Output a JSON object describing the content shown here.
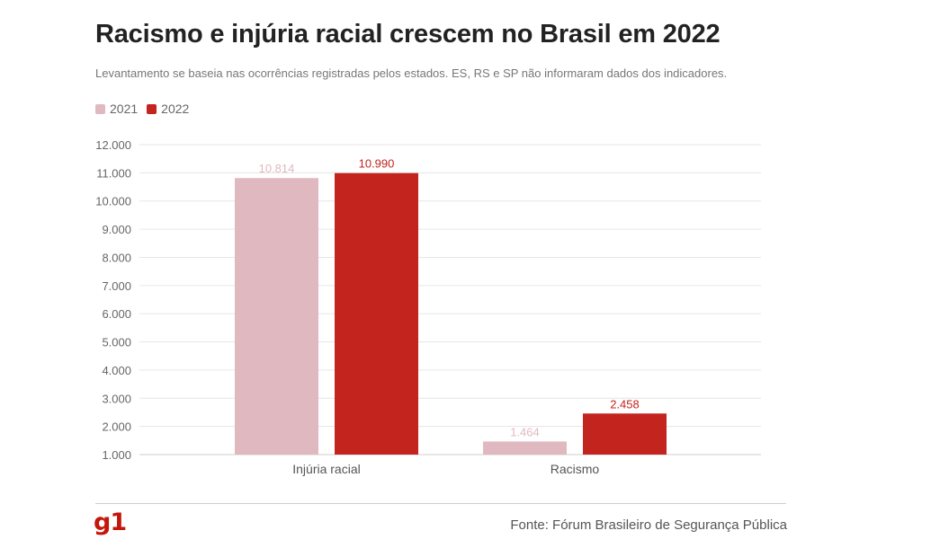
{
  "header": {
    "title": "Racismo e injúria racial crescem no Brasil em 2022",
    "subtitle": "Levantamento se baseia nas ocorrências registradas pelos estados. ES, RS e SP não informaram dados dos indicadores."
  },
  "footer": {
    "logo_text": "g1",
    "source": "Fonte: Fórum Brasileiro de Segurança Pública"
  },
  "colors": {
    "series_2021": "#e0b9c0",
    "series_2022": "#c4241e",
    "brand": "#c4170c"
  },
  "chart_data": {
    "type": "bar",
    "categories": [
      "Injúria racial",
      "Racismo"
    ],
    "series": [
      {
        "name": "2021",
        "values": [
          10814,
          1464
        ],
        "labels": [
          "10.814",
          "1.464"
        ]
      },
      {
        "name": "2022",
        "values": [
          10990,
          2458
        ],
        "labels": [
          "10.990",
          "2.458"
        ]
      }
    ],
    "ylim": [
      1000,
      12000
    ],
    "yticks": [
      1000,
      2000,
      3000,
      4000,
      5000,
      6000,
      7000,
      8000,
      9000,
      10000,
      11000,
      12000
    ],
    "ytick_labels": [
      "1.000",
      "2.000",
      "3.000",
      "4.000",
      "5.000",
      "6.000",
      "7.000",
      "8.000",
      "9.000",
      "10.000",
      "11.000",
      "12.000"
    ],
    "legend_position": "top-left",
    "grid": true
  }
}
